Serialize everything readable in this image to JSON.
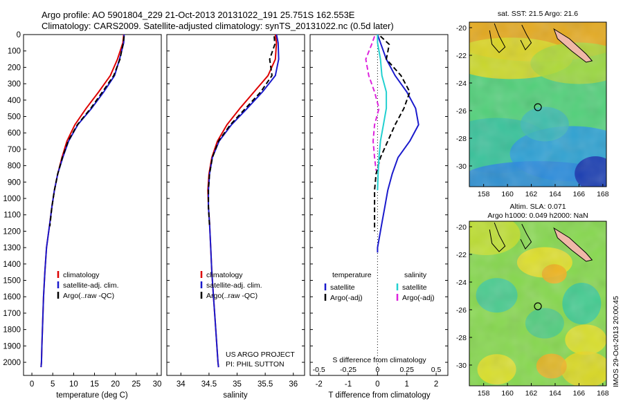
{
  "header": {
    "line1": "Argo profile: AO 5901804_229 21-Oct-2013 20131022_191 25.751S 162.553E",
    "line2": "Climatology: CARS2009. Satellite-adjusted climatology: synTS_20131022.nc (0.5d later)"
  },
  "side_stamp": "IMOS 29-Oct-2013 20:00:45",
  "colors": {
    "climatology": "#dd0000",
    "satellite": "#1a1acc",
    "argo": "#000000",
    "sat_salinity": "#22d0d0",
    "argo_salinity": "#dd22dd",
    "land": "#f0b8a8"
  },
  "chart_data": [
    {
      "type": "line",
      "xlabel": "temperature (deg C)",
      "ylabel": "",
      "xlim": [
        -2,
        31
      ],
      "ylim": [
        2080,
        0
      ],
      "xticks": [
        "0",
        "5",
        "10",
        "15",
        "20",
        "25",
        "30"
      ],
      "yticks": [
        "0",
        "100",
        "200",
        "300",
        "400",
        "500",
        "600",
        "700",
        "800",
        "900",
        "1000",
        "1100",
        "1200",
        "1300",
        "1400",
        "1500",
        "1600",
        "1700",
        "1800",
        "1900",
        "2000"
      ],
      "legend": [
        "climatology",
        "satellite-adj. clim.",
        "Argo(..raw -QC)"
      ],
      "series": [
        {
          "name": "climatology",
          "color": "#dd0000",
          "style": "solid",
          "x": [
            22.0,
            21.8,
            20.5,
            18.8,
            16.0,
            13.0,
            10.3,
            8.4,
            7.2,
            6.2,
            5.4,
            4.8,
            4.3,
            3.5,
            3.1,
            2.8,
            2.6,
            2.4,
            2.3,
            2.2
          ],
          "y": [
            0,
            50,
            150,
            250,
            350,
            450,
            550,
            650,
            750,
            850,
            950,
            1050,
            1150,
            1300,
            1450,
            1600,
            1750,
            1900,
            2000,
            2030
          ]
        },
        {
          "name": "satellite-adj. clim.",
          "color": "#1a1acc",
          "style": "solid",
          "x": [
            22.1,
            22.0,
            21.0,
            19.8,
            17.2,
            14.3,
            11.0,
            8.8,
            7.4,
            6.2,
            5.4,
            4.8,
            4.3,
            3.5,
            3.1,
            2.8,
            2.6,
            2.4,
            2.3,
            2.2
          ],
          "y": [
            0,
            50,
            150,
            250,
            350,
            450,
            550,
            650,
            750,
            850,
            950,
            1050,
            1150,
            1300,
            1450,
            1600,
            1750,
            1900,
            2000,
            2030
          ]
        },
        {
          "name": "Argo(..raw -QC)",
          "color": "#000000",
          "style": "dash",
          "x": [
            22.1,
            21.9,
            21.1,
            19.6,
            16.9,
            14.1,
            10.9,
            8.7,
            7.3,
            6.2,
            5.4,
            4.8,
            4.3
          ],
          "y": [
            10,
            50,
            150,
            250,
            350,
            450,
            550,
            650,
            750,
            850,
            950,
            1050,
            1170
          ]
        }
      ],
      "annotation": []
    },
    {
      "type": "line",
      "xlabel": "salinity",
      "ylabel": "",
      "xlim": [
        33.75,
        36.2
      ],
      "ylim": [
        2080,
        0
      ],
      "xticks": [
        "34",
        "34.5",
        "35",
        "35.5",
        "36"
      ],
      "legend": [
        "climatology",
        "satellite-adj. clim.",
        "Argo(..raw -QC)"
      ],
      "series": [
        {
          "name": "climatology",
          "color": "#dd0000",
          "style": "solid",
          "x": [
            35.68,
            35.7,
            35.68,
            35.55,
            35.3,
            35.05,
            34.82,
            34.65,
            34.55,
            34.5,
            34.48,
            34.49,
            34.51,
            34.53,
            34.55,
            34.58,
            34.61,
            34.64,
            34.66,
            34.67
          ],
          "y": [
            0,
            50,
            150,
            250,
            350,
            450,
            550,
            650,
            750,
            850,
            950,
            1050,
            1150,
            1300,
            1450,
            1600,
            1750,
            1900,
            2000,
            2030
          ]
        },
        {
          "name": "satellite-adj. clim.",
          "color": "#1a1acc",
          "style": "solid",
          "x": [
            35.7,
            35.73,
            35.74,
            35.68,
            35.45,
            35.18,
            34.9,
            34.68,
            34.56,
            34.51,
            34.49,
            34.49,
            34.51,
            34.53,
            34.55,
            34.58,
            34.61,
            34.64,
            34.66,
            34.67
          ],
          "y": [
            0,
            50,
            150,
            250,
            350,
            450,
            550,
            650,
            750,
            850,
            950,
            1050,
            1150,
            1300,
            1450,
            1600,
            1750,
            1900,
            2000,
            2030
          ]
        },
        {
          "name": "Argo(..raw -QC)",
          "color": "#000000",
          "style": "dash",
          "x": [
            35.66,
            35.67,
            35.58,
            35.62,
            35.42,
            35.15,
            34.88,
            34.67,
            34.56,
            34.51,
            34.49,
            34.49,
            34.51
          ],
          "y": [
            10,
            60,
            150,
            250,
            350,
            450,
            550,
            650,
            750,
            850,
            950,
            1050,
            1170
          ]
        }
      ],
      "annotation": [
        "US ARGO PROJECT",
        "PI: PHIL SUTTON"
      ]
    },
    {
      "type": "line",
      "xlabel": "T difference from climatology",
      "top_label": "S difference from climatology",
      "xlim": [
        -2.3,
        2.4
      ],
      "ylim": [
        2080,
        0
      ],
      "xticks": [
        "-2",
        "-1",
        "0",
        "1",
        "2"
      ],
      "top_ticks": [
        "-0.5",
        "-0.25",
        "0",
        "0.25",
        "0.5"
      ],
      "legend_groups": [
        {
          "header": "temperature",
          "items": [
            "satellite",
            "Argo(-adj)"
          ]
        },
        {
          "header": "salinity",
          "items": [
            "satellite",
            "Argo(-adj)"
          ]
        }
      ],
      "series": [
        {
          "name": "T satellite",
          "color": "#1a1acc",
          "style": "solid",
          "x": [
            0.0,
            0.1,
            0.3,
            0.6,
            1.0,
            1.3,
            1.4,
            1.1,
            0.7,
            0.5,
            0.35,
            0.25,
            0.15,
            0.05,
            0.0,
            0.0
          ],
          "y": [
            0,
            50,
            150,
            250,
            350,
            450,
            550,
            650,
            750,
            850,
            950,
            1050,
            1150,
            1250,
            1300,
            1330
          ]
        },
        {
          "name": "T Argo(-adj)",
          "color": "#000000",
          "style": "dash",
          "x": [
            0.1,
            0.4,
            0.3,
            0.8,
            1.1,
            0.9,
            0.6,
            0.35,
            0.1,
            -0.05,
            -0.1,
            -0.1,
            -0.1,
            -0.1
          ],
          "y": [
            10,
            60,
            150,
            250,
            350,
            450,
            550,
            650,
            750,
            850,
            950,
            1050,
            1150,
            1200
          ]
        },
        {
          "name": "S satellite",
          "color": "#22d0d0",
          "style": "solid",
          "x": [
            0.0,
            0.0,
            0.1,
            0.15,
            0.3,
            0.3,
            0.2,
            0.1,
            0.05,
            0.02,
            0.0
          ],
          "y": [
            0,
            50,
            150,
            250,
            350,
            450,
            550,
            650,
            750,
            850,
            950
          ]
        },
        {
          "name": "S Argo(-adj)",
          "color": "#dd22dd",
          "style": "dash",
          "x": [
            -0.1,
            -0.2,
            -0.4,
            -0.3,
            -0.1,
            0.05,
            -0.1,
            -0.15,
            -0.1,
            -0.05
          ],
          "y": [
            10,
            60,
            150,
            250,
            350,
            450,
            550,
            650,
            750,
            830
          ]
        }
      ]
    }
  ],
  "maps": [
    {
      "title": "sat. SST: 21.5  Argo: 21.6",
      "subtitle": "",
      "xticks": [
        "158",
        "160",
        "162",
        "164",
        "166",
        "168"
      ],
      "yticks": [
        "-20",
        "-22",
        "-24",
        "-26",
        "-28",
        "-30"
      ],
      "lon_range": [
        156.8,
        168.3
      ],
      "lat_range": [
        -31.5,
        -19.6
      ],
      "profile_location": {
        "lon": 162.553,
        "lat": -25.751
      }
    },
    {
      "title": "Altim. SLA: 0.071",
      "subtitle": "Argo h1000: 0.049 h2000: NaN",
      "xticks": [
        "158",
        "160",
        "162",
        "164",
        "166",
        "168"
      ],
      "yticks": [
        "-20",
        "-22",
        "-24",
        "-26",
        "-28",
        "-30"
      ],
      "lon_range": [
        156.8,
        168.3
      ],
      "lat_range": [
        -31.5,
        -19.6
      ],
      "profile_location": {
        "lon": 162.553,
        "lat": -25.751
      }
    }
  ]
}
